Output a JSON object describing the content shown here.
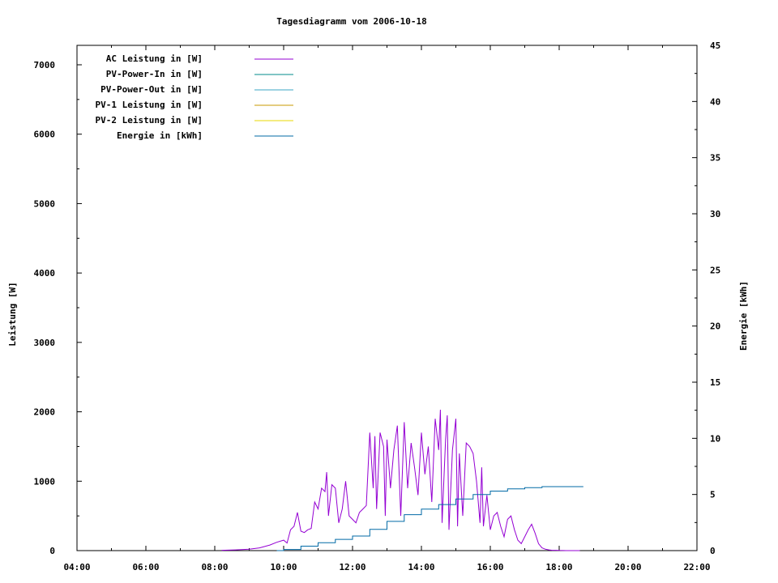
{
  "chart_data": {
    "type": "line",
    "title": "Tagesdiagramm vom 2006-10-18",
    "ylabel": "Leistung [W]",
    "y2label": "Energie [kWh]",
    "x_ticks": [
      "04:00",
      "06:00",
      "08:00",
      "10:00",
      "12:00",
      "14:00",
      "16:00",
      "18:00",
      "20:00",
      "22:00"
    ],
    "xlim_hours": [
      4,
      22
    ],
    "ylim": [
      0,
      7300
    ],
    "y_ticks": [
      "0",
      "1000",
      "2000",
      "3000",
      "4000",
      "5000",
      "6000",
      "7000"
    ],
    "y2lim": [
      0,
      45
    ],
    "y2_ticks": [
      "0",
      "5",
      "10",
      "15",
      "20",
      "25",
      "30",
      "35",
      "40",
      "45"
    ],
    "legend_position": "top-left",
    "grid": false,
    "series": [
      {
        "name": "AC Leistung in [W]",
        "axis": "left",
        "color": "#9400d3",
        "x": [
          8.2,
          8.6,
          9.0,
          9.3,
          9.6,
          9.8,
          10.0,
          10.1,
          10.2,
          10.3,
          10.4,
          10.5,
          10.6,
          10.7,
          10.8,
          10.9,
          11.0,
          11.1,
          11.2,
          11.25,
          11.3,
          11.4,
          11.5,
          11.6,
          11.7,
          11.8,
          11.9,
          12.0,
          12.1,
          12.2,
          12.3,
          12.4,
          12.5,
          12.6,
          12.65,
          12.7,
          12.8,
          12.9,
          12.95,
          13.0,
          13.1,
          13.2,
          13.3,
          13.4,
          13.5,
          13.6,
          13.7,
          13.8,
          13.9,
          14.0,
          14.1,
          14.2,
          14.3,
          14.4,
          14.5,
          14.55,
          14.6,
          14.7,
          14.75,
          14.8,
          14.9,
          15.0,
          15.05,
          15.1,
          15.2,
          15.3,
          15.4,
          15.5,
          15.6,
          15.7,
          15.75,
          15.8,
          15.9,
          16.0,
          16.1,
          16.2,
          16.3,
          16.4,
          16.5,
          16.6,
          16.7,
          16.8,
          16.9,
          17.0,
          17.1,
          17.2,
          17.3,
          17.4,
          17.5,
          17.6,
          17.7,
          17.8,
          17.9,
          18.0,
          18.2,
          18.4,
          18.6
        ],
        "values": [
          5,
          10,
          20,
          40,
          80,
          120,
          150,
          110,
          300,
          350,
          550,
          280,
          260,
          300,
          320,
          700,
          600,
          900,
          850,
          1130,
          500,
          950,
          900,
          400,
          600,
          1000,
          500,
          450,
          400,
          550,
          600,
          650,
          1700,
          900,
          1650,
          600,
          1700,
          1500,
          500,
          1600,
          900,
          1450,
          1800,
          500,
          1850,
          900,
          1550,
          1200,
          800,
          1700,
          1100,
          1500,
          700,
          1900,
          1450,
          2030,
          400,
          1600,
          1950,
          300,
          1450,
          1900,
          350,
          1400,
          500,
          1550,
          1500,
          1400,
          1000,
          400,
          1200,
          350,
          800,
          300,
          500,
          550,
          350,
          200,
          450,
          500,
          300,
          150,
          100,
          200,
          300,
          380,
          250,
          100,
          40,
          20,
          10,
          5,
          5,
          2,
          0,
          0,
          0
        ]
      },
      {
        "name": "PV-Power-In in [W]",
        "axis": "left",
        "color": "#008b8b",
        "x": [],
        "values": []
      },
      {
        "name": "PV-Power-Out in [W]",
        "axis": "left",
        "color": "#3ba7c4",
        "x": [],
        "values": []
      },
      {
        "name": "PV-1 Leistung in [W]",
        "axis": "left",
        "color": "#c99a00",
        "x": [],
        "values": []
      },
      {
        "name": "PV-2 Leistung in [W]",
        "axis": "left",
        "color": "#e8d800",
        "x": [],
        "values": []
      },
      {
        "name": "Energie in [kWh]",
        "axis": "right",
        "color": "#006aa6",
        "x": [
          9.8,
          10.0,
          10.5,
          11.0,
          11.5,
          12.0,
          12.5,
          13.0,
          13.5,
          14.0,
          14.5,
          15.0,
          15.5,
          16.0,
          16.5,
          17.0,
          17.5,
          18.0,
          18.7
        ],
        "values": [
          0.0,
          0.1,
          0.4,
          0.7,
          1.0,
          1.3,
          1.9,
          2.6,
          3.2,
          3.7,
          4.1,
          4.6,
          5.0,
          5.3,
          5.5,
          5.6,
          5.7,
          5.7,
          5.7
        ]
      }
    ]
  }
}
